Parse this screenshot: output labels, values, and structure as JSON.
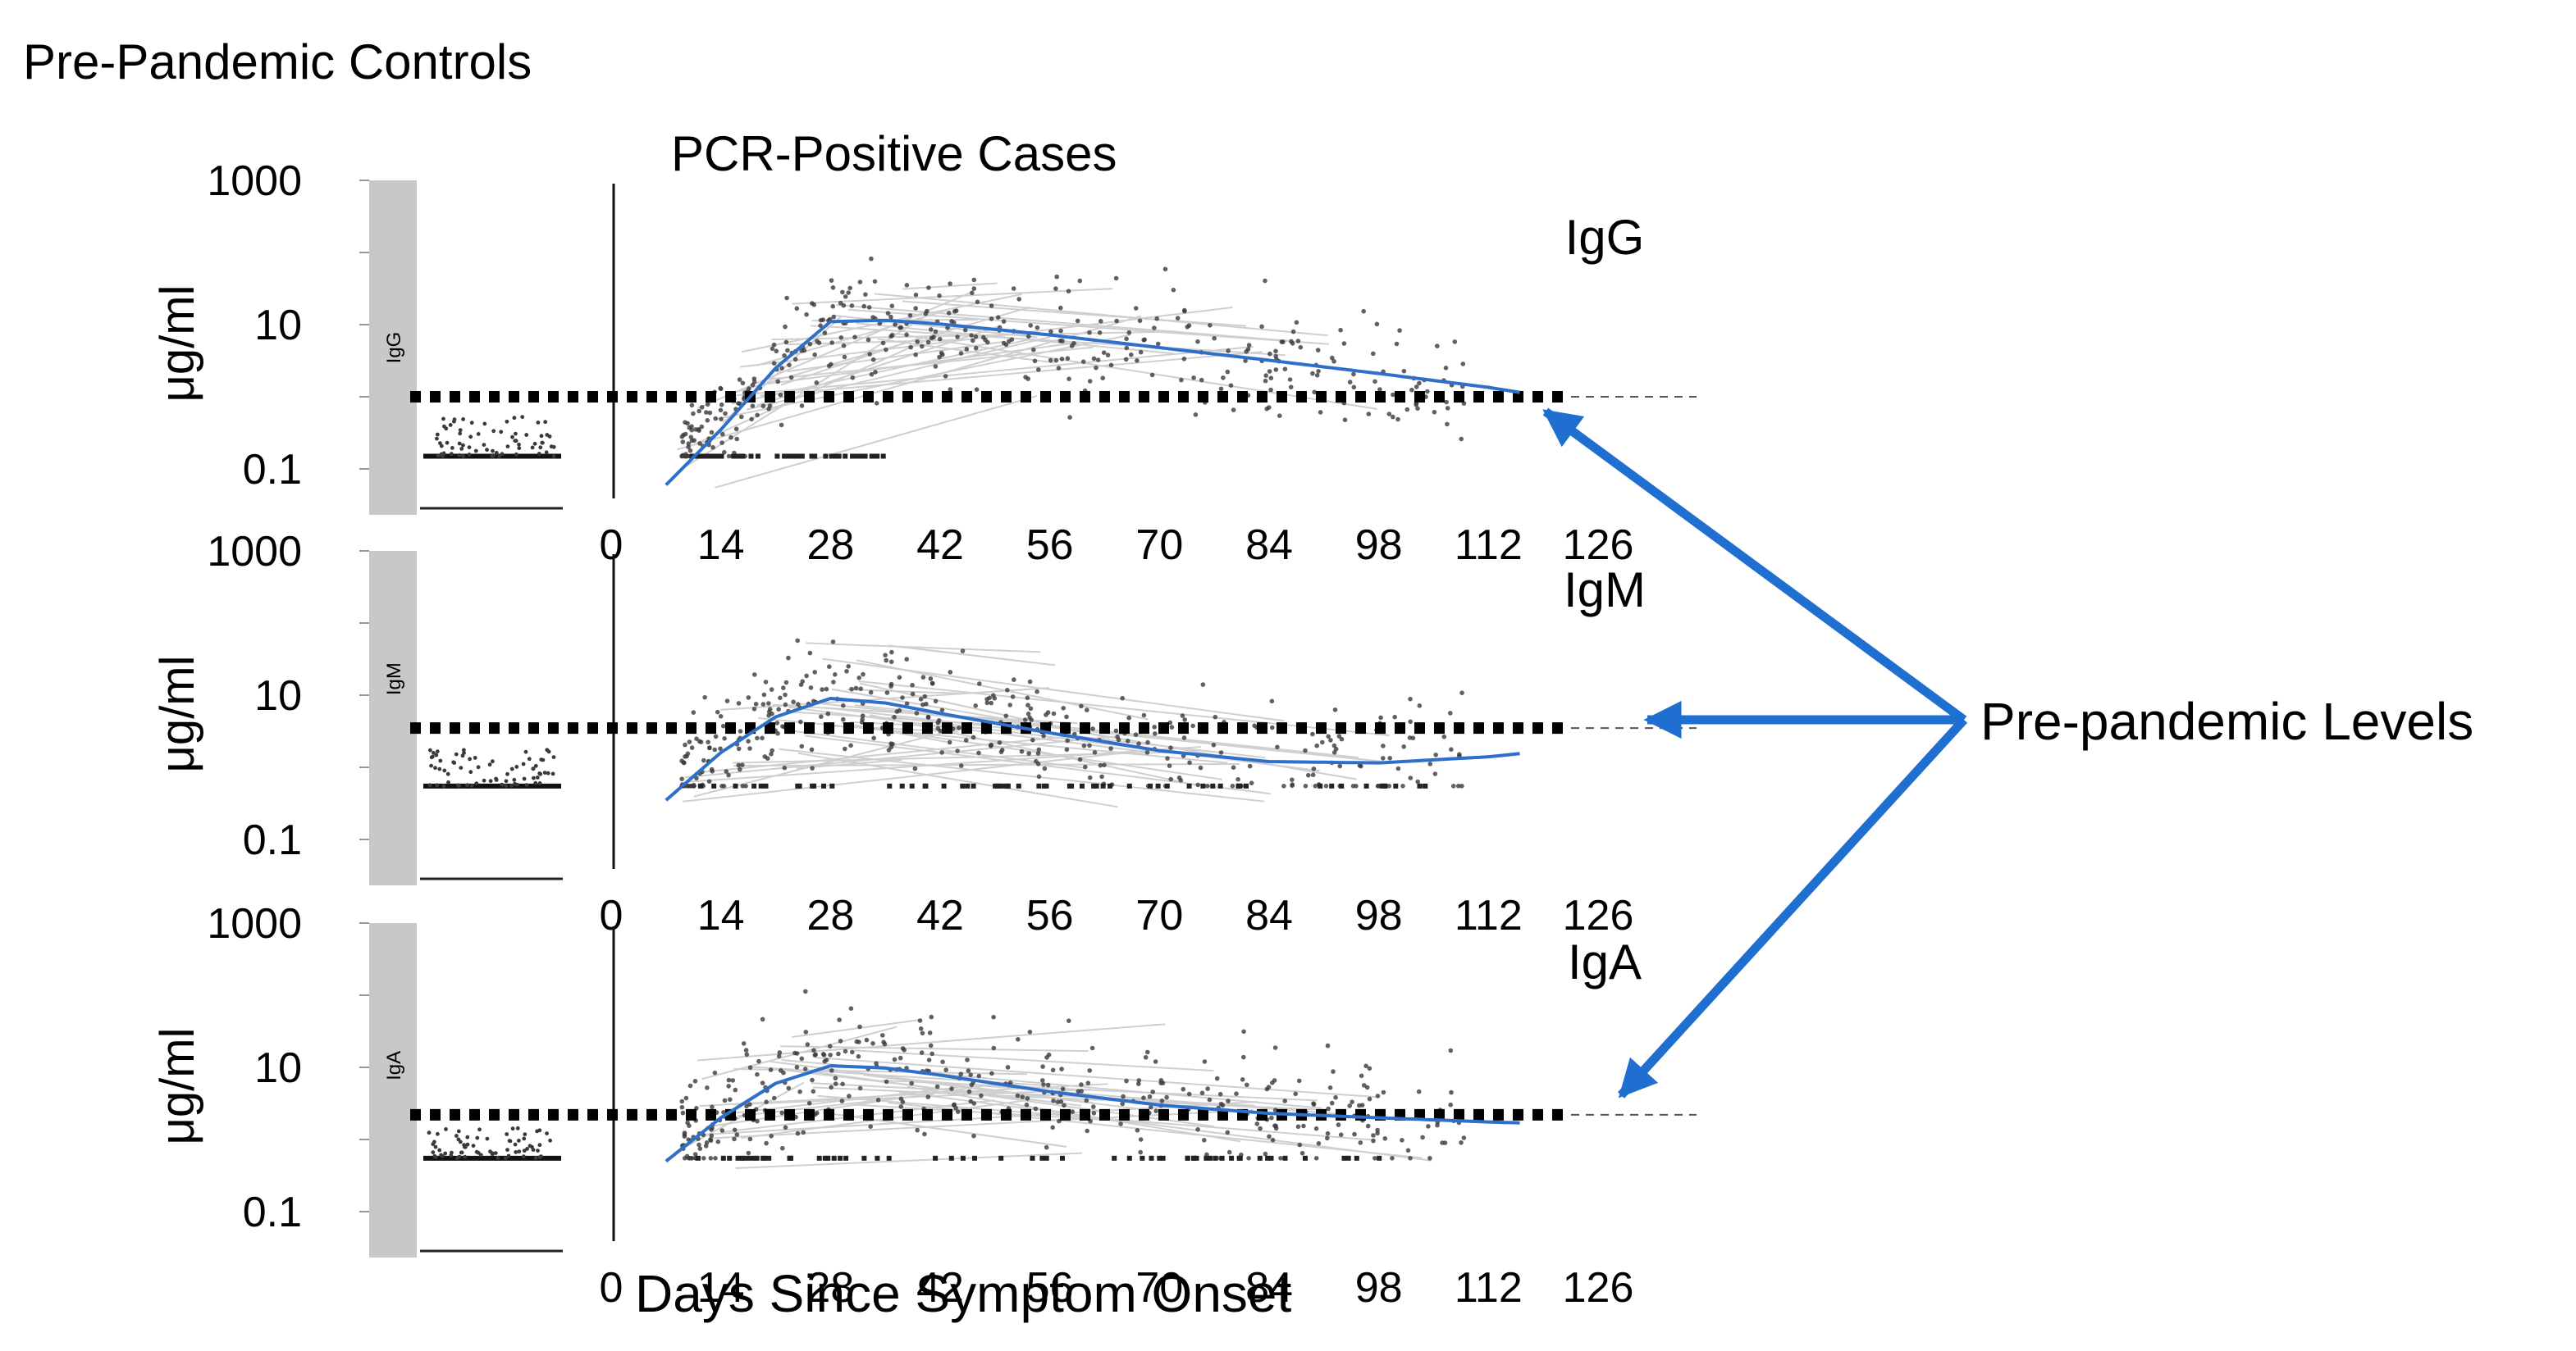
{
  "header": {
    "controls_title": "Pre-Pandemic Controls",
    "cases_title": "PCR-Positive Cases",
    "xlabel": "Days Since Symptom Onset",
    "annotation": "Pre-pandemic Levels"
  },
  "colors": {
    "fit_line": "#2e6fc9",
    "arrow": "#1f6fd1",
    "points": "#3a3a3a",
    "threshold": "#000000",
    "strip": "#c8c8c8"
  },
  "chart_data": [
    {
      "type": "scatter",
      "panel": "IgG",
      "title": "IgG",
      "strip_label": "IgG",
      "ylabel": "μg/ml",
      "yscale": "log",
      "ylim": [
        0.03,
        1000
      ],
      "yticks": [
        1000,
        10,
        0.1
      ],
      "ytick_labels": [
        "1000",
        "10",
        "0.1"
      ],
      "xlim": [
        0,
        126
      ],
      "xticks": [
        0,
        14,
        28,
        42,
        56,
        70,
        84,
        98,
        112,
        126
      ],
      "xtick_labels": [
        "0",
        "14",
        "28",
        "42",
        "56",
        "70",
        "84",
        "98",
        "112",
        "126"
      ],
      "control_floor": 0.15,
      "control_level_range": [
        0.15,
        0.55
      ],
      "pre_pandemic_level": 1.0,
      "floor": 0.15,
      "fit": {
        "x": [
          7,
          14,
          21,
          28,
          35,
          42,
          56,
          70,
          84,
          98,
          112,
          116
        ],
        "y": [
          0.06,
          0.35,
          2.5,
          11,
          11.5,
          10.2,
          7.2,
          4.8,
          3.2,
          2.1,
          1.35,
          1.15
        ]
      },
      "cloud": {
        "peak": 11,
        "spread": 1.0,
        "n": 420
      }
    },
    {
      "type": "scatter",
      "panel": "IgM",
      "title": "IgM",
      "strip_label": "IgM",
      "ylabel": "μg/ml",
      "yscale": "log",
      "ylim": [
        0.03,
        1000
      ],
      "yticks": [
        1000,
        10,
        0.1
      ],
      "ytick_labels": [
        "1000",
        "10",
        "0.1"
      ],
      "xlim": [
        0,
        126
      ],
      "xticks": [
        0,
        14,
        28,
        42,
        56,
        70,
        84,
        98,
        112,
        126
      ],
      "xtick_labels": [
        "0",
        "14",
        "28",
        "42",
        "56",
        "70",
        "84",
        "98",
        "112",
        "126"
      ],
      "control_floor": 0.55,
      "control_level_range": [
        0.55,
        1.8
      ],
      "pre_pandemic_level": 3.5,
      "floor": 0.55,
      "fit": {
        "x": [
          7,
          14,
          21,
          28,
          35,
          42,
          56,
          70,
          84,
          98,
          112,
          116
        ],
        "y": [
          0.35,
          1.6,
          5.0,
          9.0,
          7.8,
          5.6,
          3.0,
          1.7,
          1.2,
          1.15,
          1.4,
          1.55
        ]
      },
      "cloud": {
        "peak": 9,
        "spread": 1.0,
        "n": 400
      }
    },
    {
      "type": "scatter",
      "panel": "IgA",
      "title": "IgA",
      "strip_label": "IgA",
      "ylabel": "μg/ml",
      "yscale": "log",
      "ylim": [
        0.03,
        1000
      ],
      "yticks": [
        1000,
        10,
        0.1
      ],
      "ytick_labels": [
        "1000",
        "10",
        "0.1"
      ],
      "xlim": [
        0,
        126
      ],
      "xticks": [
        0,
        14,
        28,
        42,
        56,
        70,
        84,
        98,
        112,
        126
      ],
      "xtick_labels": [
        "0",
        "14",
        "28",
        "42",
        "56",
        "70",
        "84",
        "98",
        "112",
        "126"
      ],
      "control_floor": 0.55,
      "control_level_range": [
        0.55,
        1.5
      ],
      "pre_pandemic_level": 2.2,
      "floor": 0.55,
      "fit": {
        "x": [
          7,
          14,
          21,
          28,
          35,
          42,
          56,
          70,
          84,
          98,
          112,
          116
        ],
        "y": [
          0.5,
          2.0,
          6.0,
          10.5,
          9.8,
          7.8,
          4.6,
          3.0,
          2.3,
          2.0,
          1.75,
          1.7
        ]
      },
      "cloud": {
        "peak": 10,
        "spread": 1.0,
        "n": 400
      }
    }
  ]
}
